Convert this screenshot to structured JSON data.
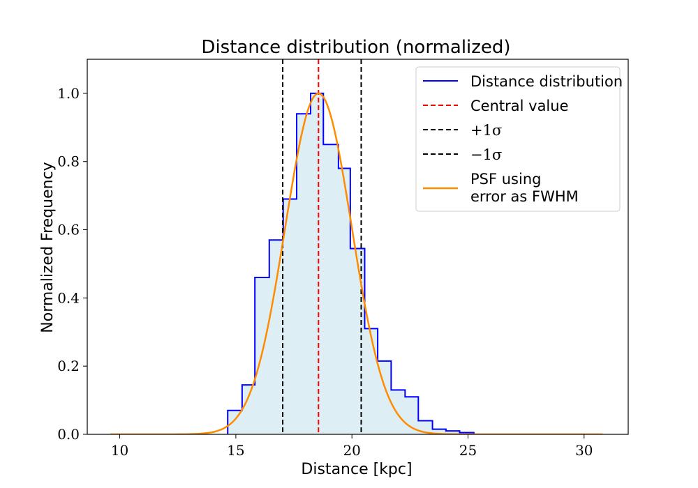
{
  "chart_data": {
    "type": "histogram",
    "title": "Distance distribution (normalized)",
    "xlabel": "Distance [kpc]",
    "ylabel": "Normalized Frequency",
    "xlim": [
      8.6,
      31.9
    ],
    "ylim": [
      0.0,
      1.1
    ],
    "xticks": [
      10,
      15,
      20,
      25,
      30
    ],
    "xtick_labels": [
      "10",
      "15",
      "20",
      "25",
      "30"
    ],
    "yticks": [
      0.0,
      0.2,
      0.4,
      0.6,
      0.8,
      1.0
    ],
    "ytick_labels": [
      "0.0",
      "0.2",
      "0.4",
      "0.6",
      "0.8",
      "1.0"
    ],
    "grid": false,
    "legend_position": "top-right",
    "histogram": {
      "name": "Distance distribution",
      "color": "#0000ff",
      "fill_color": "#add8e6",
      "bin_edges": [
        14.65,
        15.27,
        15.82,
        16.44,
        17.04,
        17.62,
        18.22,
        18.77,
        19.42,
        19.93,
        20.55,
        21.11,
        21.69,
        22.29,
        22.86,
        23.47,
        24.05,
        24.64,
        25.25
      ],
      "values": [
        0.07,
        0.145,
        0.46,
        0.57,
        0.69,
        0.94,
        1.0,
        0.85,
        0.78,
        0.545,
        0.31,
        0.215,
        0.13,
        0.11,
        0.04,
        0.015,
        0.01,
        0.005
      ]
    },
    "central_value": {
      "name": "Central value",
      "x": 18.56,
      "color": "#ff0000"
    },
    "plus_sigma": {
      "name": "+1σ",
      "x": 20.4,
      "color": "#000000"
    },
    "minus_sigma": {
      "name": "−1σ",
      "x": 17.02,
      "color": "#000000"
    },
    "psf": {
      "name_line1": "PSF using",
      "name_line2": "error as FWHM",
      "center": 18.56,
      "fwhm": 3.38,
      "amplitude": 1.0,
      "x_range": [
        9.6,
        30.8
      ],
      "color": "#ff8c00"
    },
    "legend": [
      {
        "label": "Distance distribution",
        "color": "#0000ff",
        "dash": "solid"
      },
      {
        "label": "Central value",
        "color": "#ff0000",
        "dash": "dashed"
      },
      {
        "label": "+1σ",
        "color": "#000000",
        "dash": "dashed"
      },
      {
        "label": "−1σ",
        "color": "#000000",
        "dash": "dashed"
      },
      {
        "label": "PSF using",
        "label2": "error as FWHM",
        "color": "#ff8c00",
        "dash": "solid"
      }
    ]
  }
}
